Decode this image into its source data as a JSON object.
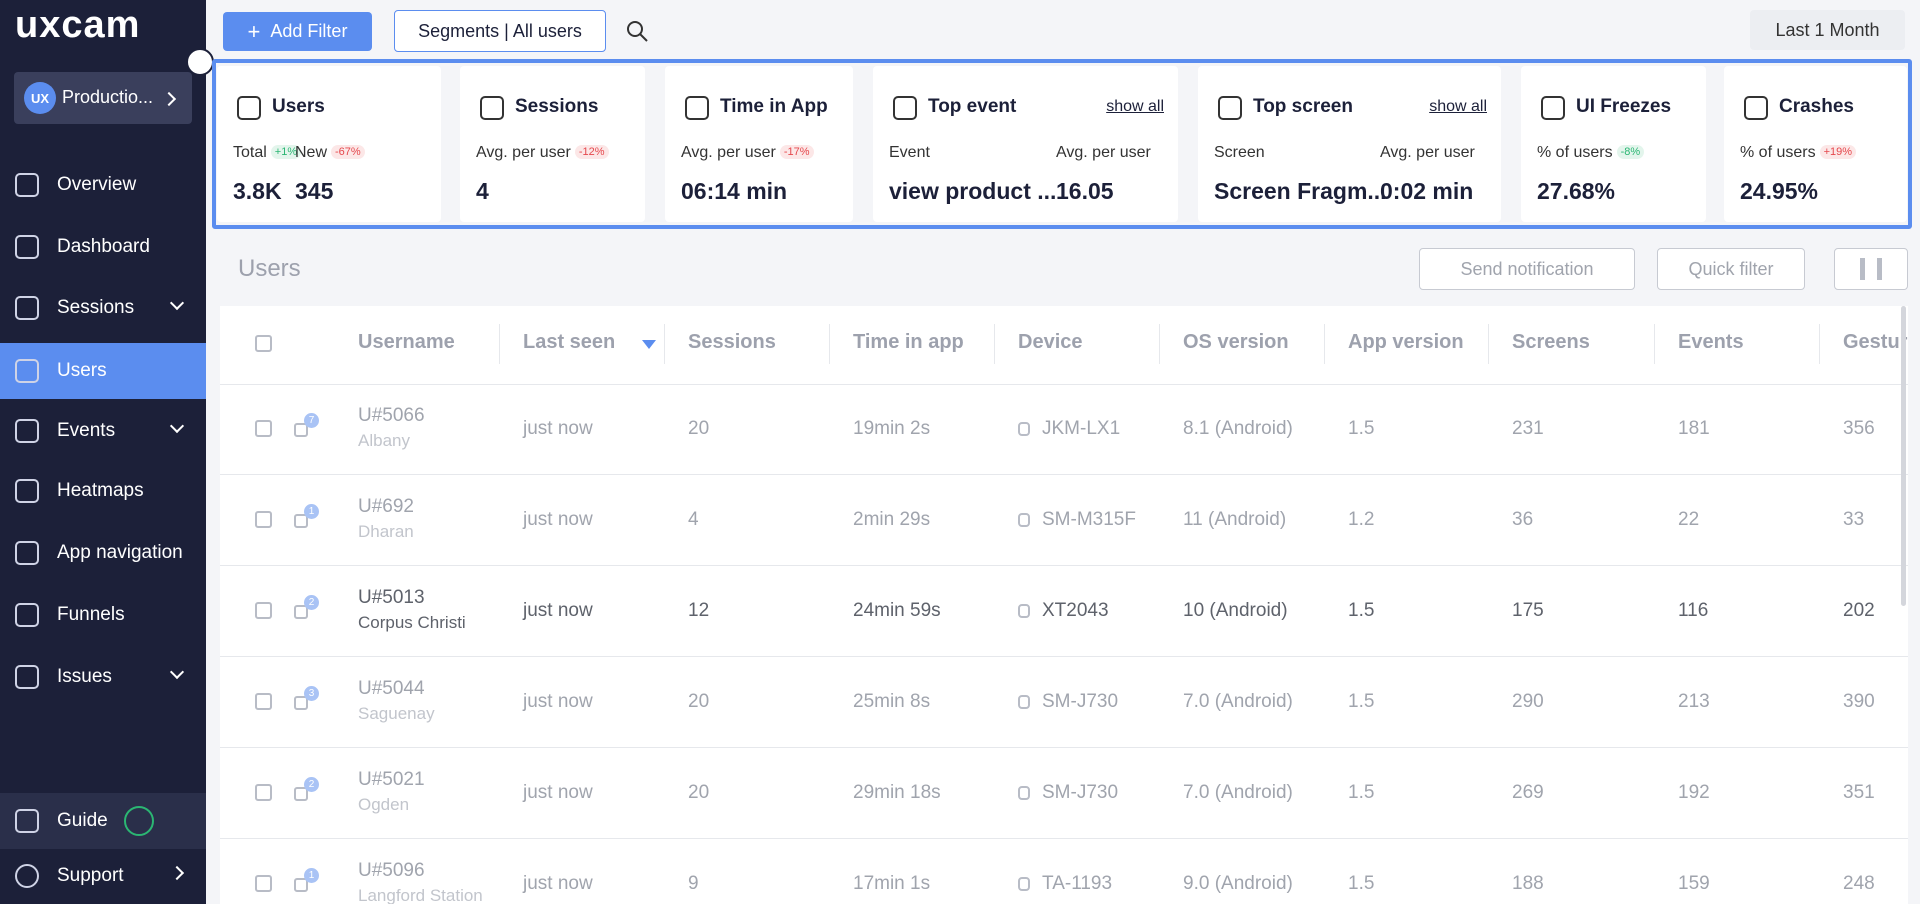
{
  "sidebar": {
    "logo": "uxcam",
    "app_badge": "UX",
    "app": "Productio...",
    "nav": [
      {
        "label": "Overview"
      },
      {
        "label": "Dashboard"
      },
      {
        "label": "Sessions",
        "expandable": true
      },
      {
        "label": "Users",
        "active": true
      },
      {
        "label": "Events",
        "expandable": true
      },
      {
        "label": "Heatmaps"
      },
      {
        "label": "App navigation"
      },
      {
        "label": "Funnels"
      },
      {
        "label": "Issues",
        "expandable": true
      }
    ],
    "guide": "Guide",
    "support": "Support"
  },
  "toolbar": {
    "add_filter": "Add Filter",
    "segments": "Segments | All users",
    "period": "Last 1 Month"
  },
  "metrics": [
    {
      "title": "Users",
      "fields": [
        {
          "label": "Total",
          "badge": "+1%",
          "badge_color": "#2bb673",
          "value": "3.8K"
        },
        {
          "label": "New",
          "badge": "-67%",
          "badge_color": "#e5484d",
          "value": "345"
        }
      ]
    },
    {
      "title": "Sessions",
      "fields": [
        {
          "label": "Avg. per user",
          "badge": "-12%",
          "badge_color": "#e5484d",
          "value": "4"
        }
      ]
    },
    {
      "title": "Time in App",
      "fields": [
        {
          "label": "Avg. per user",
          "badge": "-17%",
          "badge_color": "#e5484d",
          "value": "06:14 min"
        }
      ]
    },
    {
      "title": "Top event",
      "link": "show all",
      "fields": [
        {
          "label": "Event",
          "value": "view product ..."
        },
        {
          "label": "Avg. per user",
          "value": "16.05"
        }
      ]
    },
    {
      "title": "Top screen",
      "link": "show all",
      "fields": [
        {
          "label": "Screen",
          "value": "Screen Fragm..."
        },
        {
          "label": "Avg. per user",
          "value": "0:02 min"
        }
      ]
    },
    {
      "title": "UI Freezes",
      "fields": [
        {
          "label": "% of users",
          "badge": "-8%",
          "badge_color": "#2bb673",
          "value": "27.68%"
        }
      ]
    },
    {
      "title": "Crashes",
      "fields": [
        {
          "label": "% of users",
          "badge": "+19%",
          "badge_color": "#e5484d",
          "value": "24.95%"
        }
      ]
    }
  ],
  "table": {
    "title": "Users",
    "send_notification": "Send notification",
    "quick_filter": "Quick filter",
    "columns": [
      "Username",
      "Last seen",
      "Sessions",
      "Time in app",
      "Device",
      "OS version",
      "App version",
      "Screens",
      "Events",
      "Gestures"
    ],
    "rows": [
      {
        "notes": "7",
        "username": "U#5066",
        "location": "Albany",
        "cells": [
          "just now",
          "20",
          "19min 2s",
          "JKM-LX1",
          "8.1 (Android)",
          "1.5",
          "231",
          "181",
          "356"
        ]
      },
      {
        "notes": "1",
        "username": "U#692",
        "location": "Dharan",
        "cells": [
          "just now",
          "4",
          "2min 29s",
          "SM-M315F",
          "11 (Android)",
          "1.2",
          "36",
          "22",
          "33"
        ]
      },
      {
        "notes": "2",
        "username": "U#5013",
        "location": "Corpus Christi",
        "highlighted": true,
        "cells": [
          "just now",
          "12",
          "24min 59s",
          "XT2043",
          "10 (Android)",
          "1.5",
          "175",
          "116",
          "202"
        ]
      },
      {
        "notes": "3",
        "username": "U#5044",
        "location": "Saguenay",
        "cells": [
          "just now",
          "20",
          "25min 8s",
          "SM-J730",
          "7.0 (Android)",
          "1.5",
          "290",
          "213",
          "390"
        ]
      },
      {
        "notes": "2",
        "username": "U#5021",
        "location": "Ogden",
        "cells": [
          "just now",
          "20",
          "29min 18s",
          "SM-J730",
          "7.0 (Android)",
          "1.5",
          "269",
          "192",
          "351"
        ]
      },
      {
        "notes": "1",
        "username": "U#5096",
        "location": "Langford Station",
        "cells": [
          "just now",
          "9",
          "17min 1s",
          "TA-1193",
          "9.0 (Android)",
          "1.5",
          "188",
          "159",
          "248"
        ]
      }
    ]
  }
}
